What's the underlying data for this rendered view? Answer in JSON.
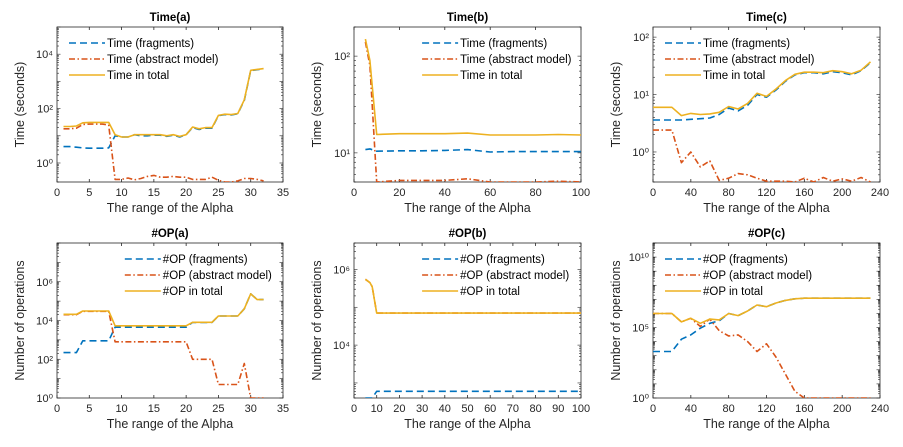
{
  "colors": {
    "fragments": "#0072BD",
    "abstract": "#D95319",
    "total": "#EDB120"
  },
  "chart_data": [
    {
      "id": "time-a",
      "type": "line",
      "title": "Time(a)",
      "xlabel": "The range of the Alpha",
      "ylabel": "Time (seconds)",
      "xlim": [
        0,
        35
      ],
      "xticks": [
        0,
        5,
        10,
        15,
        20,
        25,
        30,
        35
      ],
      "yscale": "log",
      "ylim": [
        0.2,
        100000
      ],
      "ytick_exps": [
        0,
        2,
        4
      ],
      "legend": "top-left",
      "x": [
        1,
        2,
        3,
        4,
        5,
        6,
        7,
        8,
        9,
        10,
        11,
        12,
        13,
        14,
        15,
        16,
        17,
        18,
        19,
        20,
        21,
        22,
        23,
        24,
        25,
        26,
        27,
        28,
        29,
        30,
        31,
        32
      ],
      "series": [
        {
          "name": "Time (fragments)",
          "style": "dashed",
          "color_key": "fragments",
          "values": [
            4,
            4,
            3.8,
            3.6,
            3.5,
            3.5,
            3.5,
            3.6,
            10,
            9,
            9,
            11,
            10,
            10,
            10.5,
            10.5,
            9.5,
            10.5,
            9,
            11,
            20,
            17,
            19,
            19,
            55,
            60,
            58,
            65,
            200,
            2500,
            2700,
            2900
          ]
        },
        {
          "name": "Time (abstract model)",
          "style": "dashdot",
          "color_key": "abstract",
          "values": [
            18,
            18,
            19,
            26,
            27,
            27,
            27,
            25,
            0.25,
            0.25,
            0.28,
            0.24,
            0.27,
            0.32,
            0.35,
            0.3,
            0.3,
            0.32,
            0.3,
            0.3,
            0.25,
            0.25,
            0.25,
            0.3,
            0.23,
            0.2,
            0.2,
            0.22,
            0.27,
            0.27,
            0.25,
            0.22
          ]
        },
        {
          "name": "Time in total",
          "style": "solid",
          "color_key": "total",
          "values": [
            22,
            22,
            23,
            30,
            31,
            31,
            31,
            31,
            11,
            9,
            9,
            11,
            11,
            11,
            11,
            11,
            10,
            11,
            9.5,
            11,
            21,
            18,
            20,
            20,
            56,
            62,
            60,
            66,
            210,
            2550,
            2750,
            2950
          ]
        }
      ]
    },
    {
      "id": "time-b",
      "type": "line",
      "title": "Time(b)",
      "xlabel": "The range of the Alpha",
      "ylabel": "Time (seconds)",
      "xlim": [
        0,
        100
      ],
      "xticks": [
        0,
        20,
        40,
        60,
        80,
        100
      ],
      "yscale": "log",
      "ylim": [
        5,
        200
      ],
      "ytick_exps": [
        1,
        2
      ],
      "legend": "top-right",
      "x": [
        5,
        7,
        10,
        20,
        30,
        40,
        50,
        60,
        70,
        80,
        90,
        100
      ],
      "series": [
        {
          "name": "Time (fragments)",
          "style": "dashed",
          "color_key": "fragments",
          "values": [
            10.8,
            11,
            10.4,
            10.5,
            10.5,
            10.6,
            10.8,
            10.2,
            10.3,
            10.3,
            10.3,
            10.3
          ]
        },
        {
          "name": "Time (abstract model)",
          "style": "dashdot",
          "color_key": "abstract",
          "values": [
            140,
            80,
            5,
            5.2,
            5.2,
            5.2,
            5.4,
            5,
            5,
            5,
            5.1,
            5
          ]
        },
        {
          "name": "Time in total",
          "style": "solid",
          "color_key": "total",
          "values": [
            150,
            90,
            15.5,
            15.8,
            15.8,
            15.8,
            16,
            15.3,
            15.3,
            15.3,
            15.5,
            15.3
          ]
        }
      ]
    },
    {
      "id": "time-c",
      "type": "line",
      "title": "Time(c)",
      "xlabel": "The range of the Alpha",
      "ylabel": "Time (seconds)",
      "xlim": [
        0,
        240
      ],
      "xticks": [
        0,
        40,
        80,
        120,
        160,
        200,
        240
      ],
      "yscale": "log",
      "ylim": [
        0.3,
        150
      ],
      "ytick_exps": [
        0,
        1,
        2
      ],
      "legend": "top-left",
      "x": [
        0,
        10,
        20,
        30,
        40,
        50,
        60,
        70,
        80,
        90,
        100,
        110,
        120,
        130,
        140,
        150,
        160,
        170,
        180,
        190,
        200,
        210,
        220,
        230
      ],
      "series": [
        {
          "name": "Time (fragments)",
          "style": "dashed",
          "color_key": "fragments",
          "values": [
            3.6,
            3.6,
            3.6,
            3.6,
            3.7,
            3.8,
            3.9,
            4.5,
            5.8,
            5.2,
            6.5,
            10,
            9,
            12,
            17,
            22,
            24,
            24,
            23,
            25,
            24,
            22,
            26,
            36
          ]
        },
        {
          "name": "Time (abstract model)",
          "style": "dashdot",
          "color_key": "abstract",
          "values": [
            2.4,
            2.4,
            2.4,
            0.65,
            1,
            0.55,
            0.7,
            0.32,
            0.35,
            0.42,
            0.4,
            0.35,
            0.31,
            0.31,
            0.31,
            0.3,
            0.35,
            0.3,
            0.36,
            0.31,
            0.34,
            0.31,
            0.36,
            0.3
          ]
        },
        {
          "name": "Time in total",
          "style": "solid",
          "color_key": "total",
          "values": [
            6,
            6,
            6,
            4.3,
            4.7,
            4.5,
            4.6,
            4.9,
            6.2,
            5.6,
            7,
            10.5,
            9.3,
            12.5,
            17.5,
            22.5,
            24.5,
            24.5,
            24,
            26,
            25,
            23,
            26.5,
            37
          ]
        }
      ]
    },
    {
      "id": "op-a",
      "type": "line",
      "title": "#OP(a)",
      "xlabel": "The range of the Alpha",
      "ylabel": "Number of operations",
      "xlim": [
        0,
        35
      ],
      "xticks": [
        0,
        5,
        10,
        15,
        20,
        25,
        30,
        35
      ],
      "yscale": "log",
      "ylim": [
        1,
        100000000
      ],
      "ytick_exps": [
        0,
        2,
        4,
        6
      ],
      "legend": "top-right",
      "x": [
        1,
        2,
        3,
        4,
        5,
        6,
        7,
        8,
        9,
        10,
        11,
        12,
        13,
        14,
        15,
        16,
        17,
        18,
        19,
        20,
        21,
        22,
        23,
        24,
        25,
        26,
        27,
        28,
        29,
        30,
        31,
        32
      ],
      "series": [
        {
          "name": "#OP (fragments)",
          "style": "dashed",
          "color_key": "fragments",
          "values": [
            220,
            220,
            220,
            900,
            900,
            900,
            900,
            900,
            4500,
            4500,
            4500,
            4500,
            4500,
            4500,
            4500,
            4500,
            4500,
            4500,
            4500,
            4500,
            8000,
            8000,
            8000,
            8000,
            17000,
            17000,
            17000,
            17000,
            40000,
            240000,
            120000,
            120000
          ]
        },
        {
          "name": "#OP (abstract model)",
          "style": "dashdot",
          "color_key": "abstract",
          "values": [
            20000,
            20000,
            20000,
            30000,
            30000,
            30000,
            30000,
            30000,
            800,
            800,
            800,
            800,
            800,
            800,
            800,
            800,
            800,
            800,
            800,
            800,
            100,
            100,
            100,
            100,
            5,
            5,
            5,
            5,
            60,
            1,
            1,
            1
          ]
        },
        {
          "name": "#OP in total",
          "style": "solid",
          "color_key": "total",
          "values": [
            21000,
            21000,
            21000,
            31000,
            31000,
            31000,
            31000,
            31000,
            5300,
            5300,
            5300,
            5300,
            5300,
            5300,
            5300,
            5300,
            5300,
            5300,
            5300,
            5300,
            8100,
            8100,
            8100,
            8100,
            17000,
            17000,
            17000,
            17000,
            40000,
            240000,
            120000,
            120000
          ]
        }
      ]
    },
    {
      "id": "op-b",
      "type": "line",
      "title": "#OP(b)",
      "xlabel": "The range of the Alpha",
      "ylabel": "Number of operations",
      "xlim": [
        0,
        100
      ],
      "xticks": [
        0,
        10,
        20,
        30,
        40,
        50,
        60,
        70,
        80,
        90,
        100
      ],
      "yscale": "log",
      "ylim": [
        400,
        5000000
      ],
      "ytick_exps": [
        4,
        6
      ],
      "legend": "top-right",
      "x": [
        5,
        7,
        8,
        10,
        20,
        30,
        40,
        50,
        60,
        70,
        80,
        90,
        100
      ],
      "series": [
        {
          "name": "#OP (fragments)",
          "style": "dashed",
          "color_key": "fragments",
          "values": [
            400,
            400,
            400,
            600,
            600,
            600,
            600,
            600,
            600,
            600,
            600,
            600,
            600
          ]
        },
        {
          "name": "#OP (abstract model)",
          "style": "dashdot",
          "color_key": "abstract",
          "values": [
            550000,
            450000,
            350000,
            70000,
            70000,
            70000,
            70000,
            70000,
            70000,
            70000,
            70000,
            70000,
            70000
          ]
        },
        {
          "name": "#OP in total",
          "style": "solid",
          "color_key": "total",
          "values": [
            550000,
            450000,
            350000,
            70000,
            70000,
            70000,
            70000,
            70000,
            70000,
            70000,
            70000,
            70000,
            70000
          ]
        }
      ]
    },
    {
      "id": "op-c",
      "type": "line",
      "title": "#OP(c)",
      "xlabel": "The range of the Alpha",
      "ylabel": "Number of operations",
      "xlim": [
        0,
        240
      ],
      "xticks": [
        0,
        40,
        80,
        120,
        160,
        200,
        240
      ],
      "yscale": "log",
      "ylim": [
        1,
        100000000000
      ],
      "ytick_exps": [
        0,
        5,
        10
      ],
      "legend": "top-left",
      "x": [
        0,
        10,
        20,
        30,
        40,
        50,
        60,
        70,
        80,
        90,
        100,
        110,
        120,
        130,
        140,
        150,
        160,
        170,
        180,
        190,
        200,
        210,
        220,
        230
      ],
      "series": [
        {
          "name": "#OP (fragments)",
          "style": "dashed",
          "color_key": "fragments",
          "values": [
            2000,
            2000,
            2000,
            15000,
            30000,
            90000,
            200000,
            300000,
            1000000,
            700000,
            1500000,
            4000000,
            3000000,
            5500000,
            8500000,
            11000000,
            12000000,
            12000000,
            12000000,
            12000000,
            12000000,
            12000000,
            12000000,
            12000000
          ]
        },
        {
          "name": "#OP (abstract model)",
          "style": "dashdot",
          "color_key": "abstract",
          "values": [
            1000000,
            1000000,
            1000000,
            250000,
            450000,
            120000,
            400000,
            60000,
            25000,
            30000,
            10000,
            2000,
            7000,
            800,
            50,
            3,
            1,
            1,
            1,
            1,
            1,
            1,
            1,
            1
          ]
        },
        {
          "name": "#OP in total",
          "style": "solid",
          "color_key": "total",
          "values": [
            1000000,
            1000000,
            1000000,
            250000,
            450000,
            200000,
            400000,
            350000,
            1000000,
            700000,
            1500000,
            4000000,
            3000000,
            5500000,
            8500000,
            11000000,
            12000000,
            12000000,
            12000000,
            12000000,
            12000000,
            12000000,
            12000000,
            12000000
          ]
        }
      ]
    }
  ]
}
